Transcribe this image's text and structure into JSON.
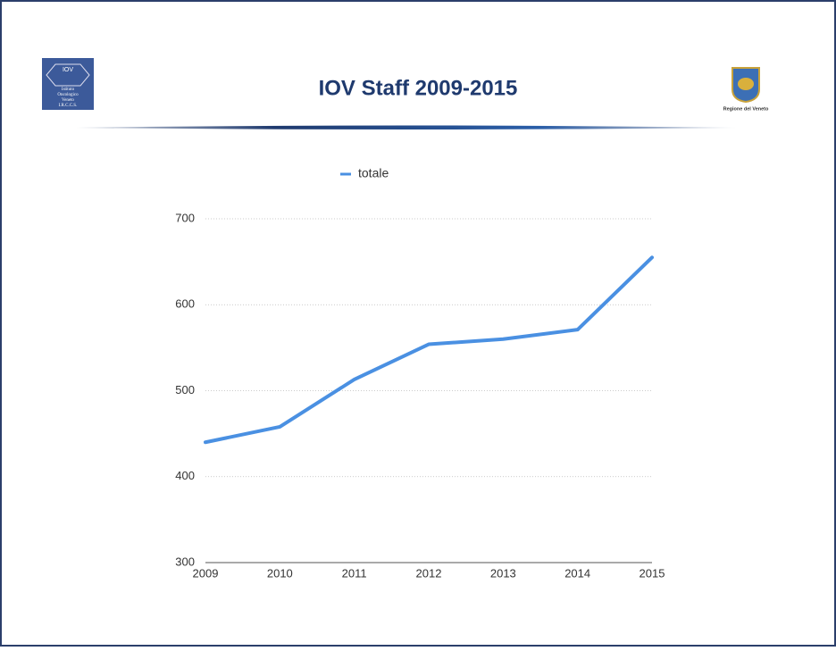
{
  "logo_left": {
    "title": "IOV",
    "lines": [
      "Istituto",
      "Oncologico",
      "Veneto",
      "I.R.C.C.S."
    ]
  },
  "logo_right": {
    "caption": "Regione del Veneto"
  },
  "chart_data": {
    "type": "line",
    "title": "IOV Staff 2009-2015",
    "categories": [
      "2009",
      "2010",
      "2011",
      "2012",
      "2013",
      "2014",
      "2015"
    ],
    "series": [
      {
        "name": "totale",
        "color": "#4a90e2",
        "values": [
          440,
          458,
          513,
          554,
          560,
          571,
          655
        ]
      }
    ],
    "ylim": [
      300,
      700
    ],
    "yticks": [
      300,
      400,
      500,
      600,
      700
    ],
    "grid": true,
    "legend": "top"
  }
}
